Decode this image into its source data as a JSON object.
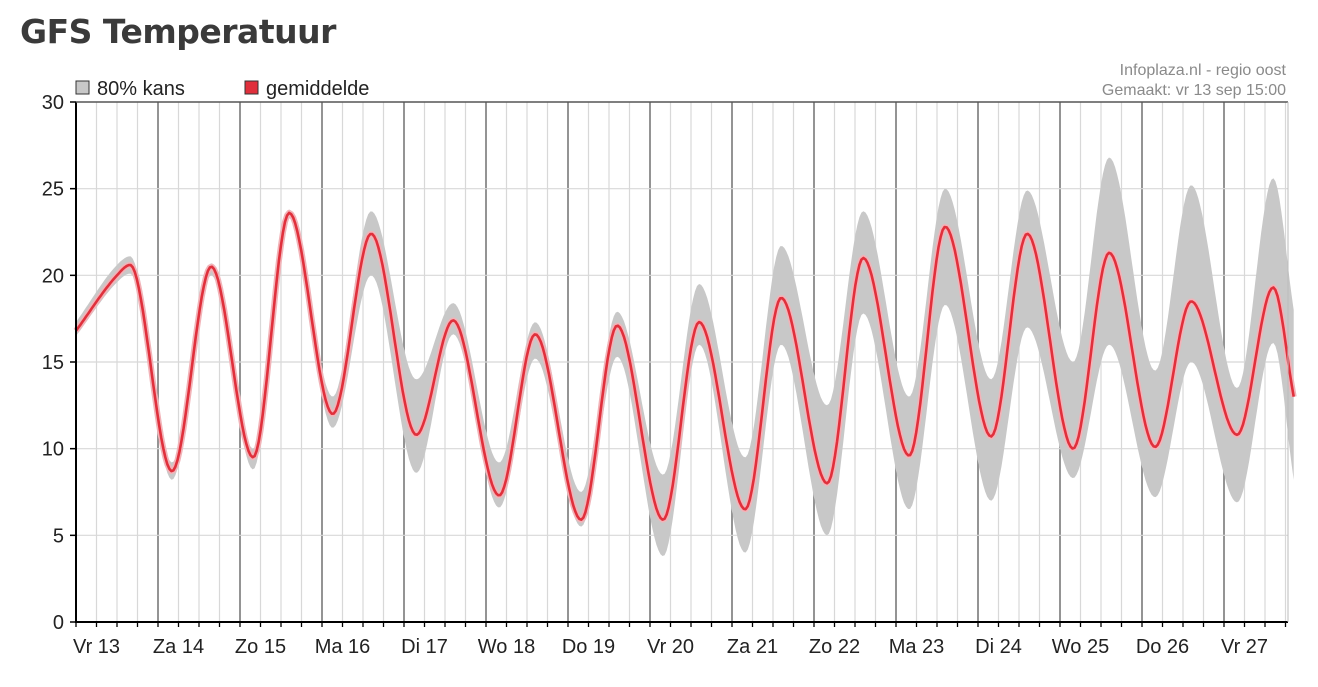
{
  "page": {
    "title": "GFS Temperatuur"
  },
  "source": {
    "line1": "Infoplaza.nl - regio oost",
    "line2": "Gemaakt: vr 13 sep 15:00"
  },
  "colors": {
    "band": "#c8c8c8",
    "mean": "#e0303c",
    "mean_halo": "#f2b3b8",
    "grid_major": "#707070",
    "grid_minor": "#d8d8d8"
  },
  "chart_data": {
    "type": "area",
    "ylim": [
      0,
      30
    ],
    "yticks": [
      0,
      5,
      10,
      15,
      20,
      25,
      30
    ],
    "x_unit": "days since Vr 13 00:00",
    "categories": [
      "Vr 13",
      "Za 14",
      "Zo 15",
      "Ma 16",
      "Di 17",
      "Wo 18",
      "Do 19",
      "Vr 20",
      "Za 21",
      "Zo 22",
      "Ma 23",
      "Di 24",
      "Wo 25",
      "Do 26",
      "Vr 27"
    ],
    "grid": true,
    "legend": {
      "position": "top-left",
      "entries": [
        {
          "label": "80% kans",
          "color": "#c8c8c8"
        },
        {
          "label": "gemiddelde",
          "color": "#e0303c"
        }
      ]
    },
    "series": [
      {
        "name": "gemiddelde",
        "x": [
          0.0,
          0.5,
          0.66,
          1.17,
          1.65,
          2.16,
          2.6,
          3.13,
          3.6,
          4.15,
          4.6,
          5.16,
          5.6,
          6.16,
          6.6,
          7.16,
          7.6,
          8.16,
          8.6,
          9.16,
          9.6,
          10.16,
          10.6,
          11.16,
          11.6,
          12.16,
          12.6,
          13.16,
          13.6,
          14.16,
          14.6,
          14.85
        ],
        "values": [
          16.8,
          20.0,
          20.6,
          8.7,
          20.5,
          9.5,
          23.6,
          12.0,
          22.4,
          10.8,
          17.4,
          7.3,
          16.6,
          5.9,
          17.1,
          5.9,
          17.3,
          6.5,
          18.7,
          8.0,
          21.0,
          9.6,
          22.8,
          10.7,
          22.4,
          10.0,
          21.3,
          10.1,
          18.5,
          10.8,
          19.3,
          13.0
        ]
      },
      {
        "name": "80% kans (max)",
        "x": [
          0.0,
          0.5,
          0.66,
          1.17,
          1.65,
          2.16,
          2.6,
          3.13,
          3.6,
          4.15,
          4.6,
          5.16,
          5.6,
          6.16,
          6.6,
          7.16,
          7.6,
          8.16,
          8.6,
          9.16,
          9.6,
          10.16,
          10.6,
          11.16,
          11.6,
          12.16,
          12.6,
          13.16,
          13.6,
          14.16,
          14.6,
          14.85
        ],
        "values": [
          17.3,
          20.6,
          21.1,
          9.2,
          20.7,
          10.0,
          23.8,
          13.0,
          23.7,
          14.0,
          18.4,
          9.2,
          17.3,
          7.5,
          17.9,
          8.5,
          19.5,
          9.5,
          21.7,
          12.5,
          23.7,
          13.0,
          25.0,
          14.0,
          24.9,
          15.0,
          26.8,
          14.5,
          25.2,
          13.5,
          25.6,
          18.0
        ]
      },
      {
        "name": "80% kans (min)",
        "x": [
          0.0,
          0.5,
          0.66,
          1.17,
          1.65,
          2.16,
          2.6,
          3.13,
          3.6,
          4.15,
          4.6,
          5.16,
          5.6,
          6.16,
          6.6,
          7.16,
          7.6,
          8.16,
          8.6,
          9.16,
          9.6,
          10.16,
          10.6,
          11.16,
          11.6,
          12.16,
          12.6,
          13.16,
          13.6,
          14.16,
          14.6,
          14.85
        ],
        "values": [
          16.5,
          19.6,
          20.1,
          8.2,
          20.0,
          8.8,
          23.3,
          11.2,
          20.0,
          8.6,
          16.6,
          6.6,
          15.2,
          5.5,
          15.3,
          3.8,
          16.0,
          4.0,
          16.0,
          5.0,
          17.8,
          6.5,
          18.3,
          7.0,
          17.0,
          8.3,
          16.0,
          7.2,
          15.0,
          6.9,
          16.1,
          8.2
        ]
      }
    ]
  }
}
